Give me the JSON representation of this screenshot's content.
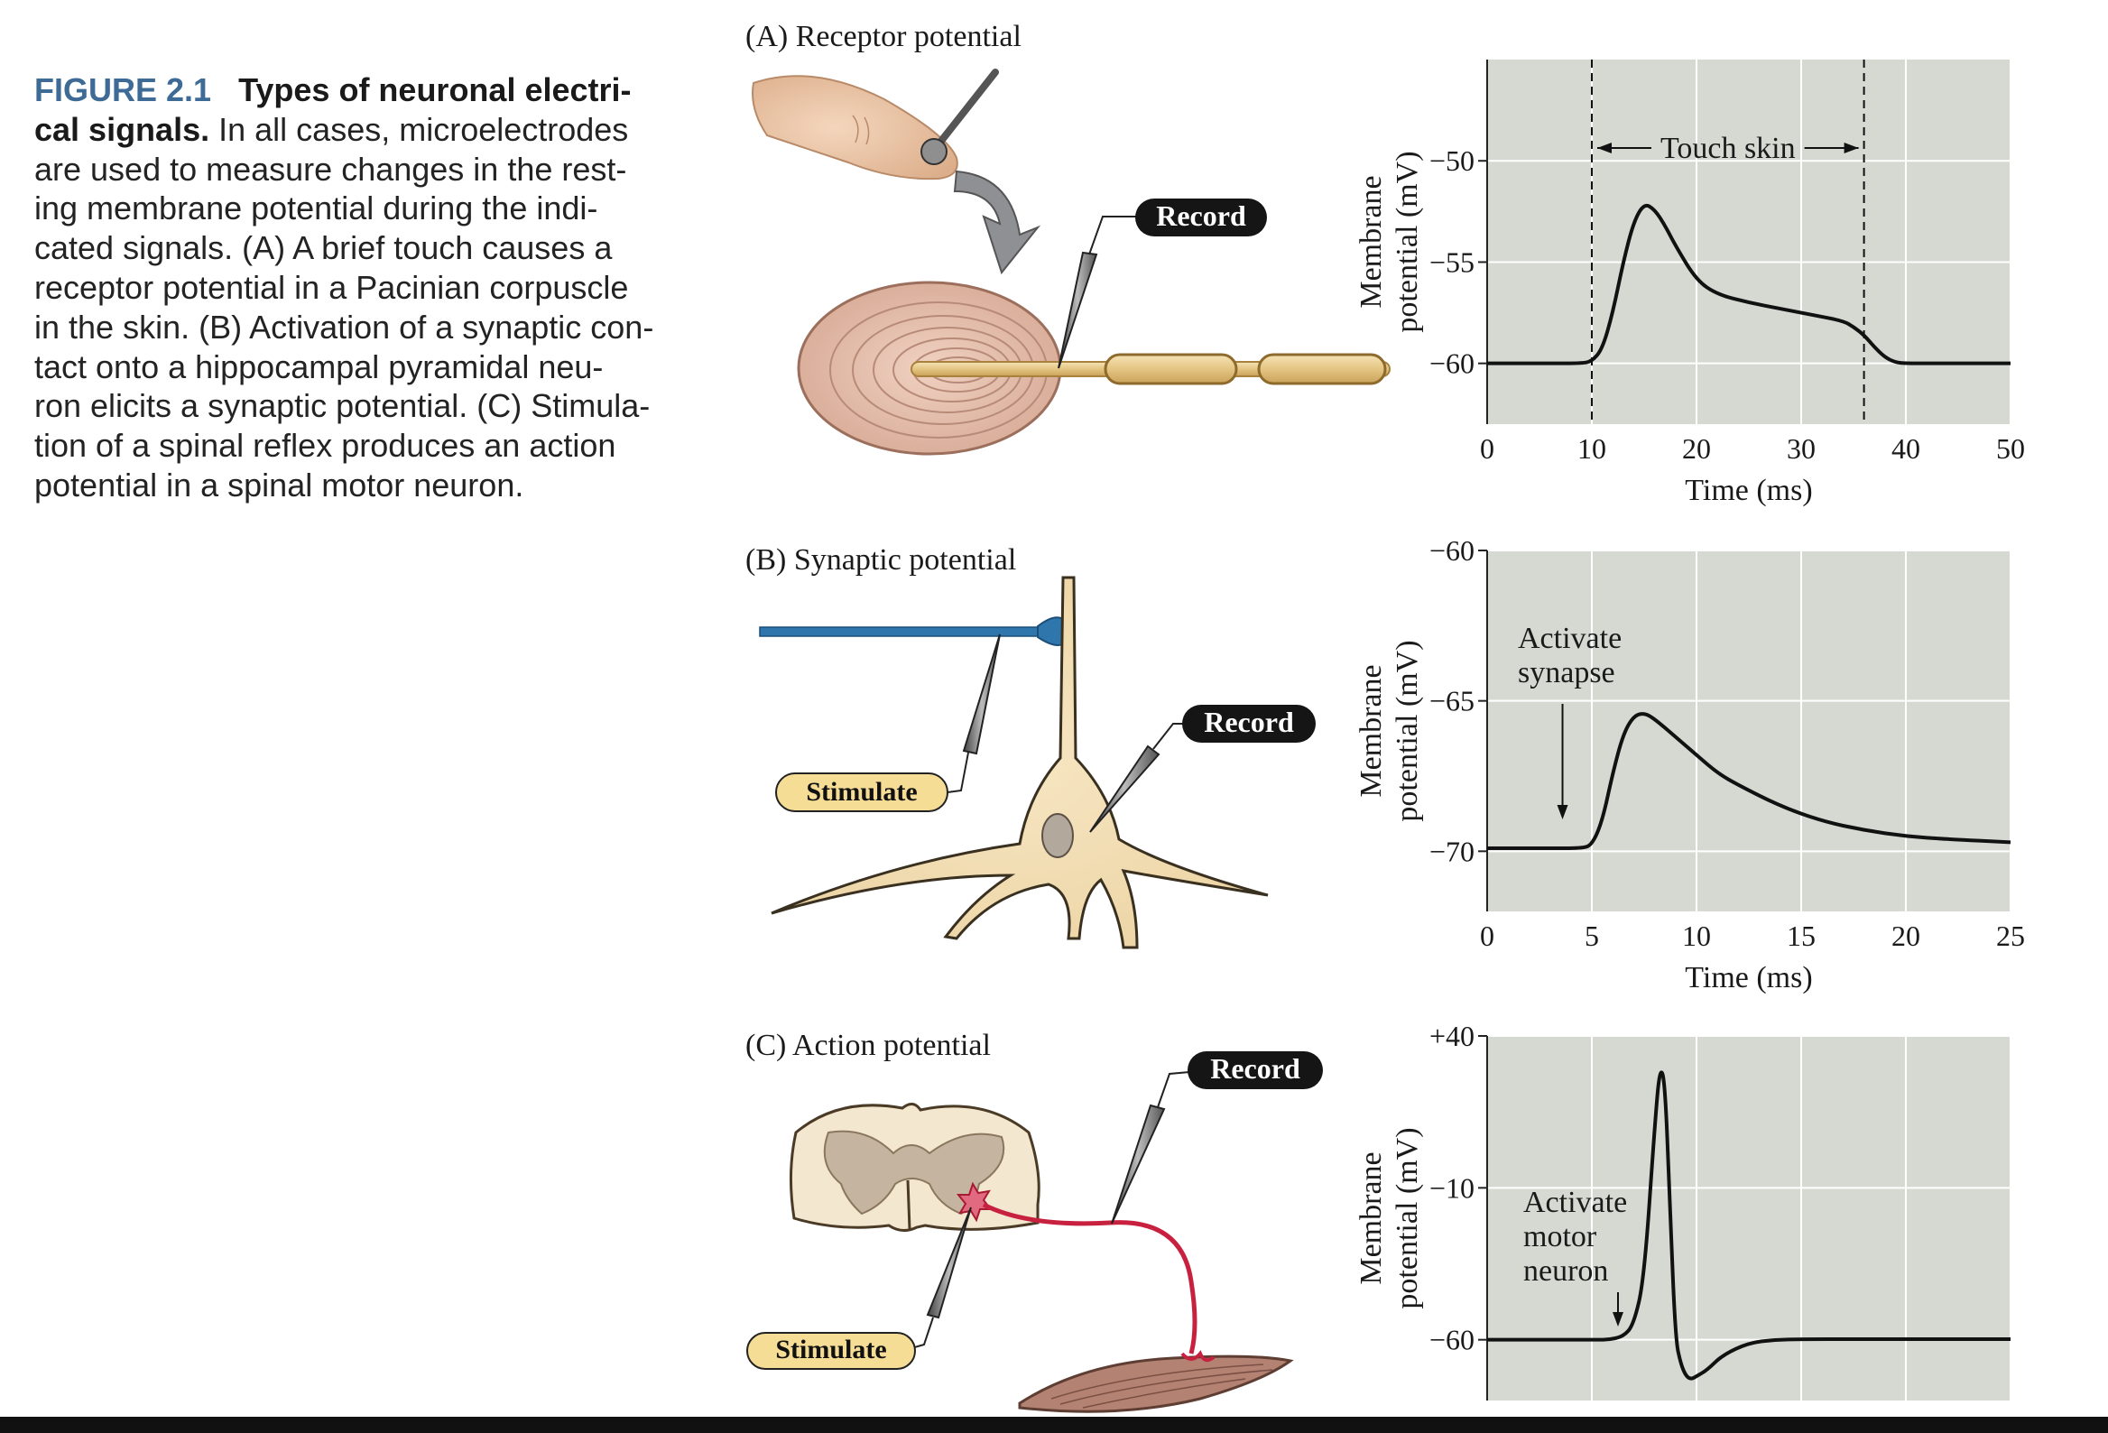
{
  "caption": {
    "number": "FIGURE 2.1",
    "title": "Types of neuronal electri-cal signals.",
    "lines": [
      "In all cases, microelectrodes",
      "are used to measure changes in the rest-",
      "ing membrane potential during the indi-",
      "cated signals. (A) A brief touch causes a",
      "receptor potential in a Pacinian corpuscle",
      "in the skin. (B) Activation of a synaptic con-",
      "tact onto a hippocampal pyramidal neu-",
      "ron elicits a synaptic potential. (C) Stimula-",
      "tion of a spinal reflex produces an action",
      "potential in a spinal motor neuron."
    ],
    "title_line1": "Types of neuronal electri-",
    "title_line2": "cal signals."
  },
  "panels": {
    "a": {
      "label": "(A)  Receptor potential",
      "record_label": "Record"
    },
    "b": {
      "label": "(B)  Synaptic potential",
      "record_label": "Record",
      "stimulate_label": "Stimulate"
    },
    "c": {
      "label": "(C)  Action potential",
      "record_label": "Record",
      "stimulate_label": "Stimulate"
    }
  },
  "colors": {
    "plot_bg": "#d6d9d1",
    "trace": "#111111",
    "caption_accent": "#3e6a96",
    "axon_red": "#c8213f",
    "presynaptic_blue": "#2f76ad",
    "label_fill": "#f6dd95"
  },
  "chart_data": [
    {
      "type": "line",
      "panel": "A",
      "xlabel": "Time (ms)",
      "ylabel": [
        "Membrane",
        "potential (mV)"
      ],
      "xlim": [
        0,
        50
      ],
      "ylim": [
        -63,
        -45
      ],
      "xticks": [
        0,
        10,
        20,
        30,
        40,
        50
      ],
      "yticks": [
        -50,
        -55,
        -60
      ],
      "ytick_labels": [
        "−50",
        "−55",
        "−60"
      ],
      "grid": true,
      "annotation": "Touch skin",
      "stimulus_window": [
        10,
        36
      ],
      "series": [
        {
          "x": [
            0,
            5,
            9,
            10,
            11,
            12,
            13,
            14,
            15,
            16,
            17,
            18,
            20,
            22,
            25,
            28,
            31,
            34,
            35,
            36,
            37,
            38,
            39,
            40,
            42,
            45,
            50
          ],
          "y": [
            -60,
            -60,
            -60,
            -59.9,
            -59.3,
            -57.5,
            -55,
            -53,
            -52.1,
            -52.4,
            -53.2,
            -54.2,
            -55.9,
            -56.6,
            -57,
            -57.3,
            -57.6,
            -57.9,
            -58.2,
            -58.6,
            -59.2,
            -59.7,
            -59.95,
            -60,
            -60,
            -60,
            -60
          ]
        }
      ]
    },
    {
      "type": "line",
      "panel": "B",
      "xlabel": "Time (ms)",
      "ylabel": [
        "Membrane",
        "potential (mV)"
      ],
      "xlim": [
        0,
        25
      ],
      "ylim": [
        -72,
        -60
      ],
      "xticks": [
        0,
        5,
        10,
        15,
        20,
        25
      ],
      "yticks": [
        -60,
        -65,
        -70
      ],
      "ytick_labels": [
        "−60",
        "−65",
        "−70"
      ],
      "grid": true,
      "annotation": [
        "Activate",
        "synapse"
      ],
      "stimulus_time": 3.6,
      "series": [
        {
          "x": [
            0,
            3,
            4.5,
            5,
            5.5,
            6,
            6.5,
            7,
            7.5,
            8,
            9,
            10,
            11,
            12,
            14,
            16,
            18,
            20,
            22,
            25
          ],
          "y": [
            -69.9,
            -69.9,
            -69.9,
            -69.8,
            -69,
            -67.4,
            -66.1,
            -65.5,
            -65.4,
            -65.6,
            -66.2,
            -66.8,
            -67.4,
            -67.8,
            -68.5,
            -69,
            -69.3,
            -69.5,
            -69.6,
            -69.7
          ]
        }
      ]
    },
    {
      "type": "line",
      "panel": "C",
      "xlabel": "",
      "ylabel": [
        "Membrane",
        "potential (mV)"
      ],
      "xlim": [
        0,
        10
      ],
      "ylim": [
        -80,
        40
      ],
      "xticks": [
        0,
        2,
        4,
        6,
        8,
        10
      ],
      "yticks": [
        40,
        -10,
        -60
      ],
      "ytick_labels": [
        "+40",
        "−10",
        "−60"
      ],
      "grid": true,
      "annotation": [
        "Activate",
        "motor",
        "neuron"
      ],
      "stimulus_time": 2.5,
      "series": [
        {
          "x": [
            0,
            1,
            2,
            2.3,
            2.6,
            2.8,
            3,
            3.2,
            3.3,
            3.4,
            3.5,
            3.6,
            3.7,
            3.8,
            3.9,
            4,
            4.2,
            4.5,
            5,
            5.5,
            6,
            7,
            8,
            9,
            10
          ],
          "y": [
            -60,
            -60,
            -60,
            -60,
            -59,
            -55,
            -40,
            10,
            30,
            25,
            -20,
            -60,
            -68,
            -72,
            -73,
            -72,
            -70,
            -65,
            -61,
            -60,
            -59.8,
            -59.8,
            -59.8,
            -59.8,
            -59.8
          ]
        }
      ]
    }
  ]
}
